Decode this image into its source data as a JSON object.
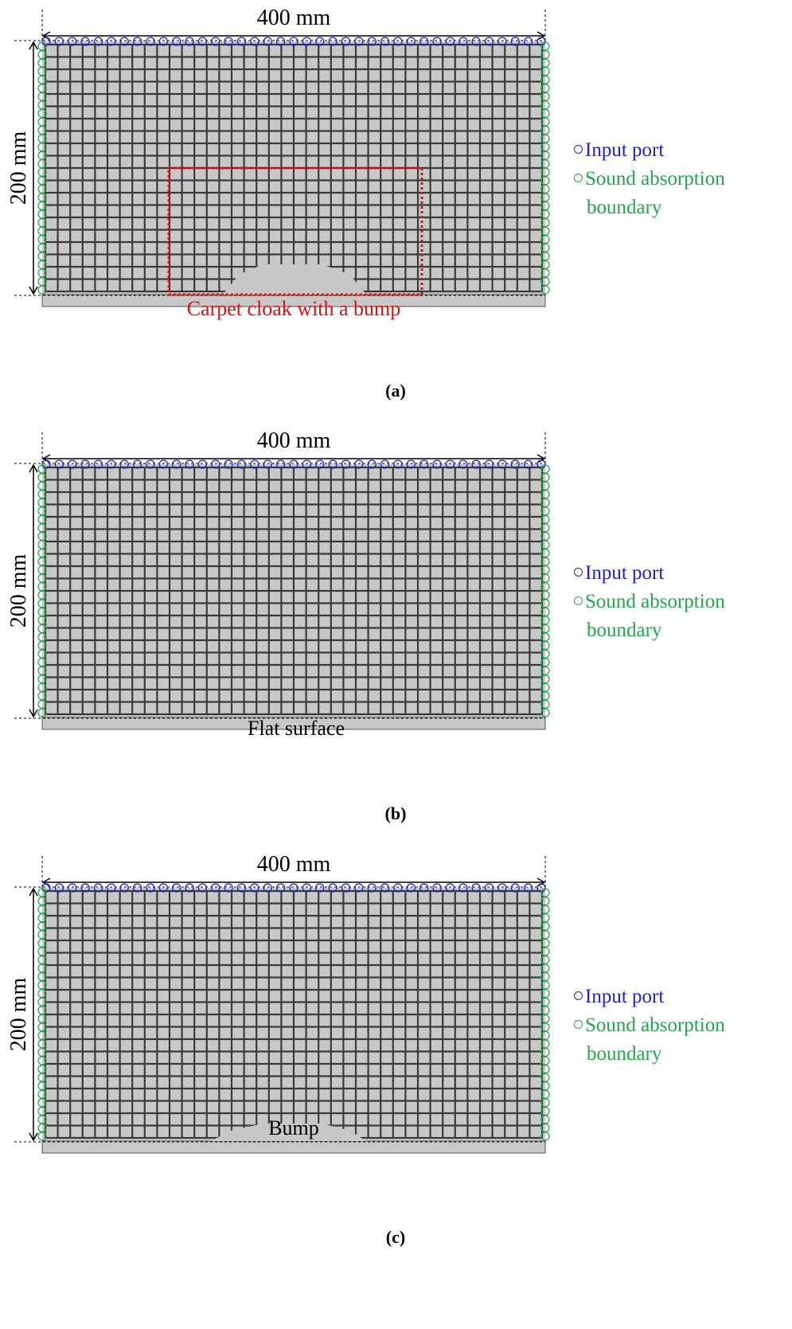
{
  "panels": [
    {
      "width_label": "400 mm",
      "height_label": "200 mm",
      "legend": {
        "input": "Input port",
        "absorption": "Sound absorption boundary"
      },
      "annotation": "Carpet cloak with a bump",
      "caption": "(a)"
    },
    {
      "width_label": "400 mm",
      "height_label": "200 mm",
      "legend": {
        "input": "Input port",
        "absorption": "Sound absorption boundary"
      },
      "annotation": "Flat surface",
      "caption": "(b)"
    },
    {
      "width_label": "400 mm",
      "height_label": "200 mm",
      "legend": {
        "input": "Input port",
        "absorption": "Sound absorption boundary"
      },
      "annotation": "Bump",
      "caption": "(c)"
    }
  ]
}
